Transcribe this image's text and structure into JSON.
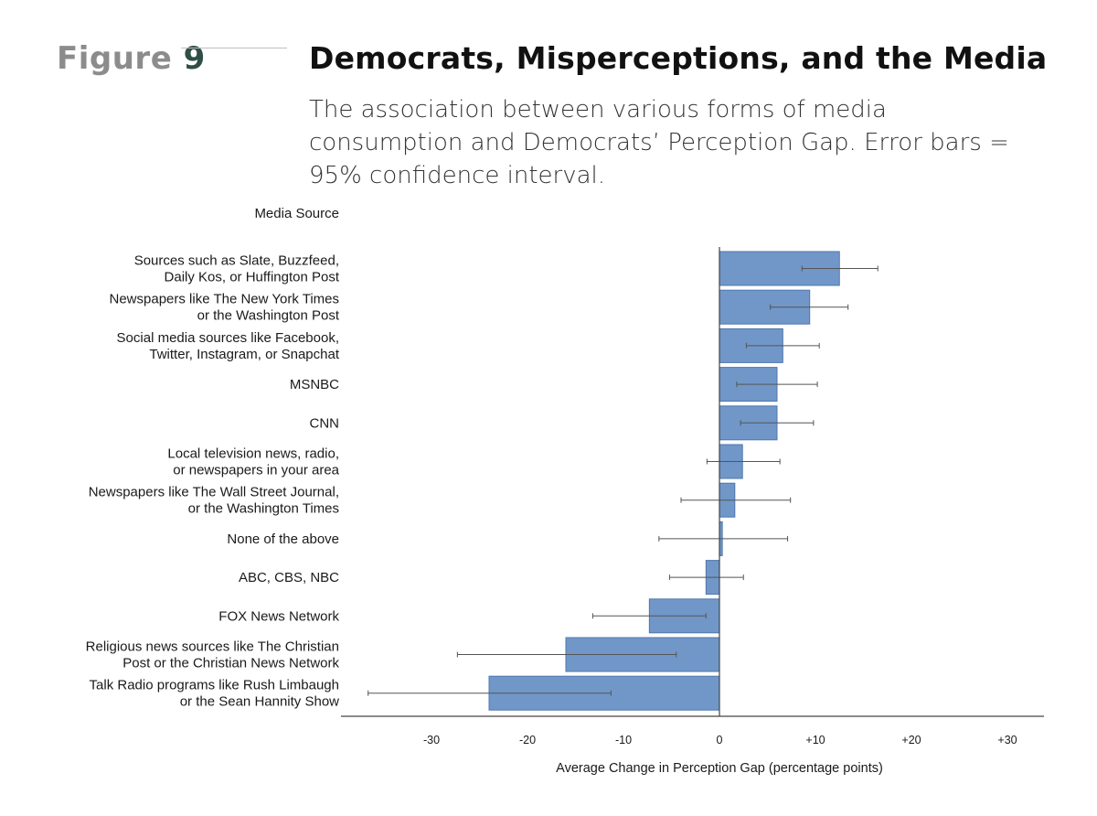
{
  "figure": {
    "label": "Figure",
    "number": "9"
  },
  "title": "Democrats, Misperceptions, and the Media",
  "subtitle": "The association between various forms of media consumption and Democrats’ Perception Gap. Error bars = 95% confidence interval.",
  "colors": {
    "bar": "#7097c8",
    "bar_stroke": "#4f77ad",
    "axis": "#444444",
    "error": "#555555"
  },
  "chart_data": {
    "type": "bar",
    "orientation": "horizontal",
    "category_axis_label": "Media Source",
    "xlabel": "Average Change in Perception Gap (percentage points)",
    "xlim": [
      -38,
      33
    ],
    "xticks": [
      -30,
      -20,
      -10,
      0,
      10,
      20,
      30
    ],
    "xtick_labels": [
      "-30",
      "-20",
      "-10",
      "0",
      "+10",
      "+20",
      "+30"
    ],
    "categories": [
      [
        "Sources such as Slate, Buzzfeed,",
        "Daily Kos, or Huffington Post"
      ],
      [
        "Newspapers like The New York Times",
        "or the Washington Post"
      ],
      [
        "Social media sources like Facebook,",
        "Twitter, Instagram, or Snapchat"
      ],
      [
        "MSNBC"
      ],
      [
        "CNN"
      ],
      [
        "Local television news, radio,",
        "or newspapers in your area"
      ],
      [
        "Newspapers like The Wall Street Journal,",
        "or the Washington Times"
      ],
      [
        "None of the above"
      ],
      [
        "ABC, CBS, NBC"
      ],
      [
        "FOX News Network"
      ],
      [
        "Religious news sources like The Christian",
        "Post or the Christian News Network"
      ],
      [
        "Talk Radio programs like Rush Limbaugh",
        "or the Sean Hannity Show"
      ]
    ],
    "values": [
      12.5,
      9.4,
      6.6,
      6.0,
      6.0,
      2.4,
      1.6,
      0.3,
      -1.4,
      -7.3,
      -16.0,
      -24.0
    ],
    "ci_low": [
      8.6,
      5.3,
      2.8,
      1.8,
      2.2,
      -1.3,
      -4.0,
      -6.3,
      -5.2,
      -13.2,
      -27.3,
      -36.6
    ],
    "ci_high": [
      16.5,
      13.4,
      10.4,
      10.2,
      9.8,
      6.3,
      7.4,
      7.1,
      2.5,
      -1.4,
      -4.5,
      -11.3
    ]
  }
}
